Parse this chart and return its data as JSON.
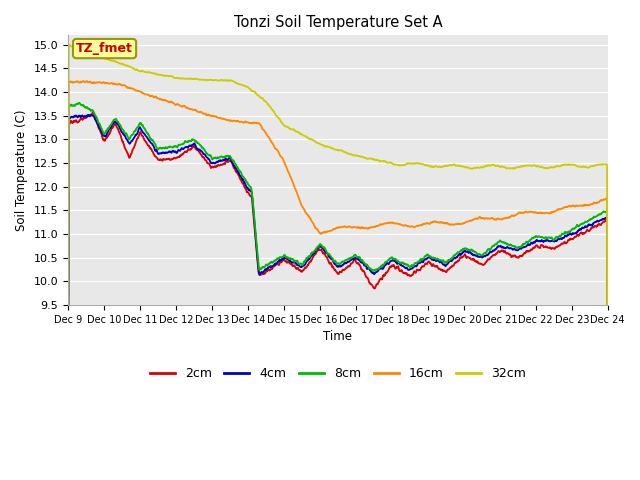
{
  "title": "Tonzi Soil Temperature Set A",
  "xlabel": "Time",
  "ylabel": "Soil Temperature (C)",
  "ylim": [
    9.5,
    15.2
  ],
  "legend_label": "TZ_fmet",
  "series_labels": [
    "2cm",
    "4cm",
    "8cm",
    "16cm",
    "32cm"
  ],
  "series_colors": [
    "#dd0000",
    "#0000cc",
    "#00bb00",
    "#ff8800",
    "#cccc00"
  ],
  "xtick_labels": [
    "Dec 9",
    "Dec 10",
    "Dec 11",
    "Dec 12",
    "Dec 13",
    "Dec 14",
    "Dec 15",
    "Dec 16",
    "Dec 17",
    "Dec 18",
    "Dec 19",
    "Dec 20",
    "Dec 21",
    "Dec 22",
    "Dec 23",
    "Dec 24"
  ],
  "plot_bg_color": "#e8e8e8",
  "grid_color": "#ffffff",
  "n_days": 15
}
